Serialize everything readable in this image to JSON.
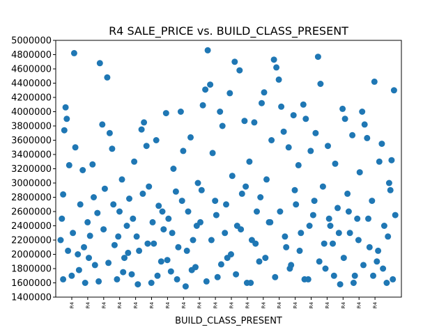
{
  "chart_data": {
    "type": "scatter",
    "title": "R4 SALE_PRICE vs. BUILD_CLASS_PRESENT",
    "xlabel": "BUILD_CLASS_PRESENT",
    "ylabel": "",
    "ylim": [
      1400000,
      5000000
    ],
    "yticks": [
      1400000,
      1600000,
      1800000,
      2000000,
      2200000,
      2400000,
      2600000,
      2800000,
      3000000,
      3200000,
      3400000,
      3600000,
      3800000,
      4000000,
      4200000,
      4400000,
      4600000,
      4800000,
      5000000
    ],
    "xtick_labels": [
      "R4",
      "R4",
      "R4",
      "R4",
      "R4",
      "R4",
      "R4",
      "R4",
      "R4",
      "R4",
      "R4",
      "R4",
      "R4",
      "R4",
      "R4",
      "R4",
      "R4",
      "R4",
      "R4",
      "R4"
    ],
    "grid": false,
    "legend": "none",
    "marker_color": "#1f77b4",
    "series": [
      {
        "note_values_estimated": true,
        "points": [
          [
            0.4,
            2200000
          ],
          [
            0.5,
            2500000
          ],
          [
            0.6,
            2840000
          ],
          [
            0.7,
            3740000
          ],
          [
            0.8,
            4060000
          ],
          [
            0.9,
            3900000
          ],
          [
            1.1,
            3250000
          ],
          [
            1.3,
            1700000
          ],
          [
            1.5,
            4820000
          ],
          [
            1.6,
            3500000
          ],
          [
            1.8,
            2000000
          ],
          [
            2.0,
            2700000
          ],
          [
            2.2,
            3180000
          ],
          [
            2.4,
            1600000
          ],
          [
            2.6,
            2450000
          ],
          [
            2.8,
            2260000
          ],
          [
            3.0,
            3260000
          ],
          [
            3.2,
            1850000
          ],
          [
            3.4,
            2580000
          ],
          [
            3.6,
            4680000
          ],
          [
            3.8,
            3820000
          ],
          [
            4.0,
            2920000
          ],
          [
            4.2,
            4480000
          ],
          [
            4.4,
            3700000
          ],
          [
            4.6,
            3480000
          ],
          [
            4.8,
            2130000
          ],
          [
            5.0,
            1650000
          ],
          [
            5.2,
            2600000
          ],
          [
            5.4,
            3050000
          ],
          [
            5.6,
            1950000
          ],
          [
            5.8,
            2400000
          ],
          [
            6.0,
            2780000
          ],
          [
            6.2,
            1720000
          ],
          [
            6.4,
            3300000
          ],
          [
            6.6,
            2250000
          ],
          [
            6.8,
            2050000
          ],
          [
            7.0,
            3750000
          ],
          [
            7.2,
            3850000
          ],
          [
            7.4,
            3520000
          ],
          [
            7.6,
            2950000
          ],
          [
            7.8,
            1600000
          ],
          [
            8.0,
            2150000
          ],
          [
            8.2,
            3600000
          ],
          [
            8.4,
            2680000
          ],
          [
            8.6,
            1900000
          ],
          [
            8.8,
            2350000
          ],
          [
            9.0,
            3980000
          ],
          [
            9.2,
            2500000
          ],
          [
            9.4,
            1760000
          ],
          [
            9.6,
            3200000
          ],
          [
            9.8,
            2880000
          ],
          [
            10.0,
            2100000
          ],
          [
            10.2,
            4000000
          ],
          [
            10.4,
            3450000
          ],
          [
            10.6,
            1550000
          ],
          [
            10.8,
            2600000
          ],
          [
            11.0,
            3640000
          ],
          [
            11.2,
            2200000
          ],
          [
            11.4,
            1820000
          ],
          [
            11.6,
            3000000
          ],
          [
            11.8,
            2450000
          ],
          [
            12.0,
            4090000
          ],
          [
            12.2,
            4310000
          ],
          [
            12.4,
            4860000
          ],
          [
            12.6,
            4380000
          ],
          [
            12.8,
            3420000
          ],
          [
            13.0,
            2750000
          ],
          [
            13.2,
            1680000
          ],
          [
            13.4,
            4000000
          ],
          [
            13.6,
            3800000
          ],
          [
            13.8,
            2300000
          ],
          [
            14.0,
            1950000
          ],
          [
            14.2,
            4260000
          ],
          [
            14.4,
            3100000
          ],
          [
            14.6,
            4700000
          ],
          [
            14.8,
            2400000
          ],
          [
            15.0,
            4580000
          ],
          [
            15.2,
            2850000
          ],
          [
            15.4,
            3870000
          ],
          [
            15.6,
            1600000
          ],
          [
            15.8,
            3300000
          ],
          [
            16.0,
            2200000
          ],
          [
            16.2,
            3850000
          ],
          [
            16.4,
            2600000
          ],
          [
            16.6,
            1900000
          ],
          [
            16.8,
            4120000
          ],
          [
            17.0,
            4270000
          ],
          [
            17.2,
            3050000
          ],
          [
            17.4,
            2450000
          ],
          [
            17.6,
            3600000
          ],
          [
            17.8,
            4730000
          ],
          [
            18.0,
            4620000
          ],
          [
            18.2,
            4450000
          ],
          [
            18.4,
            4070000
          ],
          [
            18.6,
            3720000
          ],
          [
            18.8,
            2100000
          ],
          [
            19.0,
            3500000
          ],
          [
            19.2,
            1850000
          ],
          [
            19.4,
            3950000
          ],
          [
            19.6,
            2700000
          ],
          [
            19.8,
            3250000
          ],
          [
            20.0,
            2300000
          ],
          [
            20.2,
            4100000
          ],
          [
            20.4,
            3900000
          ],
          [
            20.6,
            1650000
          ],
          [
            20.8,
            3450000
          ],
          [
            21.0,
            2550000
          ],
          [
            21.2,
            3700000
          ],
          [
            21.4,
            4770000
          ],
          [
            21.6,
            4390000
          ],
          [
            21.8,
            2950000
          ],
          [
            22.0,
            1800000
          ],
          [
            22.2,
            3520000
          ],
          [
            22.4,
            2400000
          ],
          [
            22.6,
            2150000
          ],
          [
            22.8,
            3270000
          ],
          [
            23.0,
            2650000
          ],
          [
            23.2,
            1580000
          ],
          [
            23.4,
            4040000
          ],
          [
            23.6,
            3900000
          ],
          [
            23.8,
            2850000
          ],
          [
            24.0,
            2300000
          ],
          [
            24.2,
            3670000
          ],
          [
            24.4,
            1700000
          ],
          [
            24.6,
            2500000
          ],
          [
            24.8,
            3150000
          ],
          [
            25.0,
            4000000
          ],
          [
            25.2,
            3820000
          ],
          [
            25.4,
            3630000
          ],
          [
            25.6,
            2100000
          ],
          [
            25.8,
            2750000
          ],
          [
            26.0,
            4420000
          ],
          [
            26.2,
            1900000
          ],
          [
            26.4,
            3300000
          ],
          [
            26.6,
            3550000
          ],
          [
            26.8,
            2400000
          ],
          [
            27.0,
            1600000
          ],
          [
            27.2,
            3000000
          ],
          [
            27.4,
            3320000
          ],
          [
            27.6,
            4300000
          ],
          [
            0.6,
            1650000
          ],
          [
            1.0,
            2050000
          ],
          [
            1.4,
            2300000
          ],
          [
            1.9,
            1780000
          ],
          [
            2.3,
            2100000
          ],
          [
            2.7,
            1950000
          ],
          [
            3.1,
            2800000
          ],
          [
            3.5,
            1620000
          ],
          [
            3.9,
            2350000
          ],
          [
            4.3,
            1880000
          ],
          [
            4.7,
            2700000
          ],
          [
            5.1,
            2250000
          ],
          [
            5.5,
            1750000
          ],
          [
            5.9,
            2020000
          ],
          [
            6.3,
            2500000
          ],
          [
            6.7,
            1580000
          ],
          [
            7.1,
            2850000
          ],
          [
            7.5,
            2150000
          ],
          [
            7.9,
            2450000
          ],
          [
            8.3,
            1700000
          ],
          [
            8.7,
            2600000
          ],
          [
            9.1,
            1920000
          ],
          [
            9.5,
            2300000
          ],
          [
            9.9,
            1650000
          ],
          [
            10.3,
            2750000
          ],
          [
            10.7,
            2050000
          ],
          [
            11.1,
            1780000
          ],
          [
            11.5,
            2400000
          ],
          [
            11.9,
            2900000
          ],
          [
            12.3,
            1620000
          ],
          [
            12.7,
            2200000
          ],
          [
            13.1,
            2550000
          ],
          [
            13.5,
            1860000
          ],
          [
            13.9,
            2700000
          ],
          [
            14.3,
            2000000
          ],
          [
            14.7,
            1720000
          ],
          [
            15.1,
            2350000
          ],
          [
            15.5,
            2950000
          ],
          [
            15.9,
            1600000
          ],
          [
            16.3,
            2150000
          ],
          [
            16.7,
            2800000
          ],
          [
            17.1,
            1950000
          ],
          [
            17.5,
            2450000
          ],
          [
            17.9,
            1680000
          ],
          [
            18.3,
            2600000
          ],
          [
            18.7,
            2250000
          ],
          [
            19.1,
            1800000
          ],
          [
            19.5,
            2900000
          ],
          [
            19.9,
            2050000
          ],
          [
            20.3,
            1650000
          ],
          [
            20.7,
            2400000
          ],
          [
            21.1,
            2750000
          ],
          [
            21.5,
            1900000
          ],
          [
            21.9,
            2150000
          ],
          [
            22.3,
            2500000
          ],
          [
            22.7,
            1700000
          ],
          [
            23.1,
            2300000
          ],
          [
            23.5,
            1950000
          ],
          [
            23.9,
            2600000
          ],
          [
            24.3,
            1600000
          ],
          [
            24.7,
            2200000
          ],
          [
            25.1,
            1850000
          ],
          [
            25.5,
            2500000
          ],
          [
            25.9,
            1700000
          ],
          [
            26.3,
            2050000
          ],
          [
            26.7,
            1800000
          ],
          [
            27.1,
            2250000
          ],
          [
            27.5,
            1650000
          ],
          [
            27.7,
            2550000
          ],
          [
            27.3,
            2900000
          ]
        ]
      }
    ]
  }
}
